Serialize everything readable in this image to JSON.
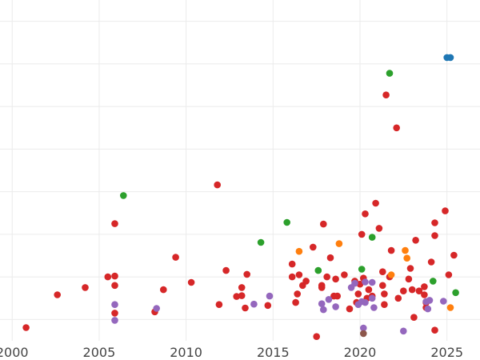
{
  "chart_data": {
    "type": "scatter",
    "title": "",
    "xlabel": "",
    "ylabel": "",
    "xlim": [
      1999.3,
      2026.9
    ],
    "x_ticks": [
      "2000",
      "2005",
      "2010",
      "2015",
      "2020",
      "2025"
    ],
    "x_tick_values": [
      2000,
      2005,
      2010,
      2015,
      2020,
      2025
    ],
    "y_tick_labels_visible": false,
    "ylim": [
      0,
      8
    ],
    "y_gridlines": [
      0.5,
      1.5,
      2.5,
      3.5,
      4.5,
      5.5,
      6.5,
      7.5
    ],
    "grid": true,
    "legend": "none",
    "marker_colors": [
      "#d62728",
      "#2ca02c",
      "#1f77b4",
      "#ff7f0e",
      "#9467bd",
      "#8c564b"
    ],
    "series": [
      {
        "color": "#d62728",
        "points": [
          [
            2000.8,
            0.31
          ],
          [
            2002.6,
            1.08
          ],
          [
            2004.2,
            1.25
          ],
          [
            2005.5,
            1.5
          ],
          [
            2005.9,
            1.52
          ],
          [
            2005.9,
            1.3
          ],
          [
            2005.9,
            0.65
          ],
          [
            2005.9,
            2.75
          ],
          [
            2008.2,
            0.68
          ],
          [
            2008.7,
            1.2
          ],
          [
            2009.4,
            1.96
          ],
          [
            2010.3,
            1.37
          ],
          [
            2011.8,
            3.66
          ],
          [
            2011.9,
            0.85
          ],
          [
            2012.3,
            1.65
          ],
          [
            2012.9,
            1.04
          ],
          [
            2013.2,
            1.06
          ],
          [
            2013.2,
            1.25
          ],
          [
            2013.4,
            0.77
          ],
          [
            2013.5,
            1.56
          ],
          [
            2014.7,
            0.83
          ],
          [
            2016.1,
            1.5
          ],
          [
            2016.1,
            1.8
          ],
          [
            2016.3,
            0.9
          ],
          [
            2016.4,
            1.1
          ],
          [
            2016.5,
            1.55
          ],
          [
            2016.7,
            1.3
          ],
          [
            2016.9,
            1.4
          ],
          [
            2017.3,
            2.2
          ],
          [
            2017.5,
            0.1
          ],
          [
            2017.8,
            1.25
          ],
          [
            2017.8,
            1.3
          ],
          [
            2017.9,
            2.74
          ],
          [
            2018.1,
            1.5
          ],
          [
            2018.3,
            1.95
          ],
          [
            2018.5,
            1.05
          ],
          [
            2018.6,
            1.45
          ],
          [
            2018.7,
            1.05
          ],
          [
            2019.1,
            1.55
          ],
          [
            2019.4,
            0.75
          ],
          [
            2019.7,
            1.4
          ],
          [
            2019.8,
            0.9
          ],
          [
            2019.9,
            1.1
          ],
          [
            2020.0,
            1.33
          ],
          [
            2020.1,
            2.5
          ],
          [
            2020.2,
            1.47
          ],
          [
            2020.3,
            2.98
          ],
          [
            2020.4,
            1.0
          ],
          [
            2020.5,
            1.2
          ],
          [
            2020.7,
            1.05
          ],
          [
            2020.9,
            3.23
          ],
          [
            2021.1,
            2.64
          ],
          [
            2021.3,
            1.3
          ],
          [
            2021.3,
            1.62
          ],
          [
            2021.4,
            1.1
          ],
          [
            2021.4,
            0.85
          ],
          [
            2021.5,
            5.77
          ],
          [
            2021.7,
            1.5
          ],
          [
            2021.8,
            2.12
          ],
          [
            2022.1,
            5.0
          ],
          [
            2022.2,
            1.0
          ],
          [
            2022.5,
            1.17
          ],
          [
            2022.8,
            1.45
          ],
          [
            2022.9,
            1.7
          ],
          [
            2023.0,
            1.2
          ],
          [
            2023.1,
            0.55
          ],
          [
            2023.2,
            2.36
          ],
          [
            2023.4,
            1.17
          ],
          [
            2023.7,
            1.27
          ],
          [
            2023.7,
            1.08
          ],
          [
            2023.8,
            0.9
          ],
          [
            2023.8,
            0.78
          ],
          [
            2024.1,
            1.85
          ],
          [
            2024.3,
            2.47
          ],
          [
            2024.3,
            2.77
          ],
          [
            2024.3,
            0.25
          ],
          [
            2024.9,
            3.05
          ],
          [
            2025.1,
            1.55
          ],
          [
            2025.4,
            2.01
          ]
        ]
      },
      {
        "color": "#2ca02c",
        "points": [
          [
            2006.4,
            3.41
          ],
          [
            2014.3,
            2.31
          ],
          [
            2015.8,
            2.78
          ],
          [
            2017.6,
            1.65
          ],
          [
            2020.1,
            1.68
          ],
          [
            2020.7,
            2.43
          ],
          [
            2021.7,
            6.28
          ],
          [
            2024.2,
            1.4
          ],
          [
            2025.5,
            1.13
          ]
        ]
      },
      {
        "color": "#1f77b4",
        "points": [
          [
            2025.0,
            6.65
          ],
          [
            2025.2,
            6.65
          ]
        ]
      },
      {
        "color": "#ff7f0e",
        "points": [
          [
            2016.5,
            2.1
          ],
          [
            2018.8,
            2.28
          ],
          [
            2021.8,
            1.55
          ],
          [
            2022.6,
            2.12
          ],
          [
            2022.7,
            1.94
          ],
          [
            2025.2,
            0.78
          ]
        ]
      },
      {
        "color": "#9467bd",
        "points": [
          [
            2005.9,
            0.85
          ],
          [
            2005.9,
            0.48
          ],
          [
            2008.3,
            0.76
          ],
          [
            2013.9,
            0.86
          ],
          [
            2014.8,
            1.05
          ],
          [
            2017.8,
            0.87
          ],
          [
            2017.9,
            0.73
          ],
          [
            2018.2,
            0.97
          ],
          [
            2018.6,
            0.8
          ],
          [
            2019.5,
            1.25
          ],
          [
            2019.7,
            1.35
          ],
          [
            2019.9,
            0.85
          ],
          [
            2020.1,
            0.92
          ],
          [
            2020.3,
            0.9
          ],
          [
            2020.3,
            1.38
          ],
          [
            2020.7,
            1.0
          ],
          [
            2020.7,
            1.37
          ],
          [
            2020.8,
            0.78
          ],
          [
            2022.5,
            0.23
          ],
          [
            2023.8,
            0.92
          ],
          [
            2023.9,
            0.75
          ],
          [
            2024.0,
            0.95
          ],
          [
            2024.8,
            0.93
          ],
          [
            2020.2,
            0.3
          ]
        ]
      },
      {
        "color": "#8c564b",
        "points": [
          [
            2020.2,
            0.17
          ]
        ]
      }
    ]
  }
}
